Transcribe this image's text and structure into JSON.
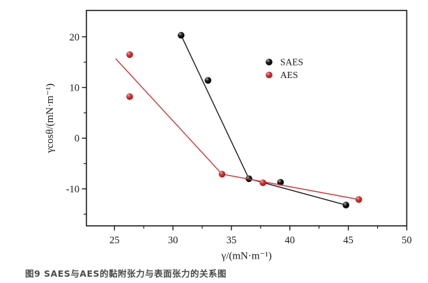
{
  "figure": {
    "caption": "图9 SAES与AES的黏附张力与表面张力的关系图"
  },
  "chart_data": {
    "type": "scatter",
    "title": "",
    "xlabel": "γ/(mN·m⁻¹)",
    "ylabel": "γcosθ/(mN·m⁻¹)",
    "xlim": [
      22.6,
      50
    ],
    "ylim": [
      -17.3,
      25.2
    ],
    "x_ticks": [
      25,
      30,
      35,
      40,
      45,
      50
    ],
    "x_minor_ticks": [
      27.5,
      32.5,
      37.5,
      42.5,
      47.5
    ],
    "y_ticks": [
      20,
      10,
      0,
      -10
    ],
    "y_minor_ticks": [
      15,
      5,
      -5,
      -15
    ],
    "grid": false,
    "legend_position": "inside upper right",
    "frame_color": "#1a1a1a",
    "series": [
      {
        "name": "SAES",
        "color": "#1a1a1a",
        "marker_highlight": "#b0b0b0",
        "marker_shadow": "#000000",
        "points": [
          [
            30.7,
            20.3
          ],
          [
            33.0,
            11.4
          ],
          [
            36.5,
            -8.0
          ],
          [
            39.2,
            -8.7
          ],
          [
            44.8,
            -13.2
          ]
        ],
        "fit_line": [
          [
            30.7,
            20.3
          ],
          [
            36.5,
            -8.0
          ],
          [
            44.8,
            -13.2
          ]
        ]
      },
      {
        "name": "AES",
        "color": "#d23537",
        "marker_highlight": "#ff9d9d",
        "marker_shadow": "#8e1b1e",
        "points": [
          [
            26.3,
            16.5
          ],
          [
            26.3,
            8.2
          ],
          [
            34.2,
            -7.1
          ],
          [
            37.7,
            -8.8
          ],
          [
            45.9,
            -12.1
          ]
        ],
        "fit_line": [
          [
            25.1,
            15.7
          ],
          [
            34.2,
            -7.1
          ],
          [
            45.9,
            -12.1
          ]
        ]
      }
    ]
  }
}
